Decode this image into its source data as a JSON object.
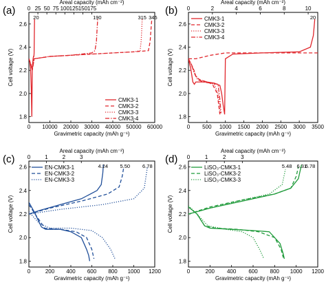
{
  "figure": {
    "panels": [
      {
        "label": "(a)",
        "xlabel": "Gravimetric capacity (mAh g⁻¹)",
        "x2label": "Areal capacity (mAh cm⁻²)",
        "ylabel": "Cell voltage (V)",
        "annotations": [
          "20",
          "190",
          "315",
          "345"
        ]
      },
      {
        "label": "(b)",
        "xlabel": "Gravimetric capacity (mAh g⁻¹)",
        "x2label": "Areal capacity (mAh cm⁻²)",
        "ylabel": "Cell voltage (V)",
        "annotations": [
          "20"
        ]
      },
      {
        "label": "(c)",
        "xlabel": "Gravimetric capacity (mAh g⁻¹)",
        "x2label": "Areal capacity (mAh cm⁻²)",
        "ylabel": "Cell voltage (V)",
        "annotations": [
          "4.24",
          "5.50",
          "6.78"
        ]
      },
      {
        "label": "(d)",
        "xlabel": "Gravimetric capacity (mAh g⁻¹)",
        "x2label": "Areal capacity (mAh cm⁻²)",
        "ylabel": "Cell voltage (V)",
        "annotations": [
          "5.48",
          "6.31",
          "6.78"
        ]
      }
    ]
  },
  "chart_data": [
    {
      "type": "line",
      "label": "(a)",
      "color": "#e0252b",
      "xlabel": "Gravimetric capacity (mAh g⁻¹)",
      "ylabel": "Cell voltage (V)",
      "x2label": "Areal capacity (mAh cm⁻²)",
      "xlim": [
        0,
        60000
      ],
      "ylim": [
        1.75,
        2.7
      ],
      "x2lim": [
        0,
        350
      ],
      "xticks": [
        0,
        10000,
        20000,
        30000,
        40000,
        50000,
        60000
      ],
      "yticks": [
        1.8,
        2.0,
        2.2,
        2.4,
        2.6
      ],
      "x2ticks": [
        0,
        25,
        50,
        75,
        100,
        125,
        150,
        175
      ],
      "legend_position": "bottom-right",
      "series": [
        {
          "name": "CMK3-1",
          "dash": "solid",
          "x": [
            0,
            400,
            800,
            1100,
            1400,
            1600,
            1800,
            2000,
            2200,
            2400,
            2500,
            2600,
            2700
          ],
          "y": [
            2.3,
            2.28,
            2.22,
            2.05,
            1.8,
            2.2,
            2.26,
            2.3,
            2.32,
            2.32,
            2.35,
            2.5,
            2.64
          ]
        },
        {
          "name": "CMK3-2",
          "dash": "dashed",
          "x": [
            0,
            1000,
            1600,
            2500,
            10000,
            20000,
            30000,
            40000,
            50000,
            57000,
            57800,
            58200,
            58600
          ],
          "y": [
            2.3,
            2.25,
            2.2,
            2.3,
            2.32,
            2.33,
            2.34,
            2.35,
            2.36,
            2.37,
            2.45,
            2.55,
            2.64
          ]
        },
        {
          "name": "CMK3-3",
          "dash": "dotted",
          "x": [
            0,
            1000,
            1600,
            2500,
            10000,
            20000,
            30000,
            40000,
            50000,
            53000,
            53500,
            53800,
            54000
          ],
          "y": [
            2.3,
            2.25,
            2.2,
            2.3,
            2.32,
            2.33,
            2.34,
            2.35,
            2.36,
            2.37,
            2.45,
            2.55,
            2.64
          ]
        },
        {
          "name": "CMK3-4",
          "dash": "dashdot",
          "x": [
            0,
            1000,
            1600,
            2500,
            10000,
            20000,
            30000,
            31500,
            32200,
            32500,
            32800
          ],
          "y": [
            2.3,
            2.25,
            2.2,
            2.3,
            2.32,
            2.33,
            2.35,
            2.37,
            2.45,
            2.55,
            2.64
          ]
        }
      ],
      "annotations": [
        {
          "text": "20",
          "x2": 20,
          "y": 2.66
        },
        {
          "text": "190",
          "x2": 190,
          "y": 2.66
        },
        {
          "text": "315",
          "x2": 315,
          "y": 2.66
        },
        {
          "text": "345",
          "x2": 345,
          "y": 2.66
        }
      ]
    },
    {
      "type": "line",
      "label": "(b)",
      "color": "#e0252b",
      "xlabel": "Gravimetric capacity (mAh g⁻¹)",
      "ylabel": "Cell voltage (V)",
      "x2label": "Areal capacity (mAh cm⁻²)",
      "xlim": [
        0,
        3500
      ],
      "ylim": [
        1.75,
        2.7
      ],
      "x2lim": [
        0,
        10.8
      ],
      "xticks": [
        0,
        500,
        1000,
        1500,
        2000,
        2500,
        3000,
        3500
      ],
      "yticks": [
        1.8,
        2.0,
        2.2,
        2.4,
        2.6
      ],
      "x2ticks": [
        0,
        2,
        4,
        6,
        8,
        10
      ],
      "legend_position": "top-left",
      "series": [
        {
          "name": "CMK3-1",
          "dash": "solid",
          "x": [
            0,
            60,
            120,
            160,
            200,
            300,
            500,
            700,
            850,
            900,
            940,
            980,
            1000,
            1200,
            2000,
            3000,
            3300,
            3380,
            3420
          ],
          "y": [
            2.3,
            2.22,
            2.1,
            2.08,
            2.1,
            2.1,
            2.1,
            2.09,
            2.07,
            2.0,
            1.9,
            1.82,
            2.3,
            2.34,
            2.35,
            2.36,
            2.4,
            2.5,
            2.64
          ]
        },
        {
          "name": "CMK3-2",
          "dash": "dashed",
          "x": [
            0,
            80,
            150,
            200,
            300,
            500,
            650,
            780,
            820,
            850,
            0,
            200,
            600,
            1000,
            3500
          ],
          "y": [
            2.3,
            2.25,
            2.2,
            2.15,
            2.12,
            2.1,
            2.08,
            2.0,
            1.9,
            1.82,
            2.3,
            2.3,
            2.33,
            2.35,
            2.35
          ]
        },
        {
          "name": "CMK3-3",
          "dash": "dotted",
          "x": [
            0,
            80,
            150,
            200,
            300,
            500,
            700,
            800,
            840,
            870
          ],
          "y": [
            2.3,
            2.25,
            2.2,
            2.15,
            2.12,
            2.1,
            2.08,
            2.0,
            1.9,
            1.82
          ]
        },
        {
          "name": "CMK3-4",
          "dash": "dashdot",
          "x": [
            0,
            80,
            150,
            250,
            400,
            600,
            800,
            850,
            880
          ],
          "y": [
            2.3,
            2.25,
            2.18,
            2.12,
            2.1,
            2.09,
            2.08,
            1.95,
            1.83
          ]
        }
      ],
      "annotations": [
        {
          "text": "20",
          "x2": 10.4,
          "y": 2.66
        }
      ]
    },
    {
      "type": "line",
      "label": "(c)",
      "color": "#1f4e99",
      "xlabel": "Gravimetric capacity (mAh g⁻¹)",
      "ylabel": "Cell voltage (V)",
      "x2label": "Areal capacity (mAh cm⁻²)",
      "xlim": [
        0,
        1200
      ],
      "ylim": [
        1.75,
        2.65
      ],
      "x2lim": [
        0,
        7.2
      ],
      "xticks": [
        0,
        200,
        400,
        600,
        800,
        1000,
        1200
      ],
      "yticks": [
        1.8,
        2.0,
        2.2,
        2.4,
        2.6
      ],
      "x2ticks": [
        0,
        1,
        2,
        3
      ],
      "legend_position": "top-left",
      "series": [
        {
          "name": "EN-CMK3-1",
          "dash": "solid",
          "x": [
            0,
            50,
            120,
            160,
            200,
            300,
            400,
            500,
            550,
            570,
            580,
            0,
            100,
            300,
            500,
            650,
            690,
            705,
            710
          ],
          "y": [
            2.3,
            2.22,
            2.09,
            2.07,
            2.07,
            2.07,
            2.05,
            2.0,
            1.9,
            1.85,
            1.8,
            2.2,
            2.23,
            2.28,
            2.33,
            2.4,
            2.45,
            2.55,
            2.62
          ]
        },
        {
          "name": "EN-CMK3-2",
          "dash": "dashed",
          "x": [
            0,
            60,
            150,
            300,
            450,
            550,
            600,
            620,
            0,
            200,
            500,
            750,
            860,
            890,
            905
          ],
          "y": [
            2.28,
            2.2,
            2.08,
            2.07,
            2.05,
            2.0,
            1.9,
            1.82,
            2.2,
            2.25,
            2.31,
            2.37,
            2.43,
            2.52,
            2.6
          ]
        },
        {
          "name": "EN-CMK3-3",
          "dash": "dotted",
          "x": [
            0,
            100,
            200,
            400,
            600,
            700,
            780,
            820,
            0,
            300,
            700,
            1000,
            1100,
            1130
          ],
          "y": [
            2.22,
            2.12,
            2.08,
            2.08,
            2.06,
            2.0,
            1.9,
            1.82,
            2.2,
            2.24,
            2.28,
            2.33,
            2.42,
            2.6
          ]
        }
      ],
      "annotations": [
        {
          "text": "4.24",
          "x2": 4.24,
          "y": 2.62
        },
        {
          "text": "5.50",
          "x2": 5.5,
          "y": 2.62
        },
        {
          "text": "6.78",
          "x2": 6.78,
          "y": 2.62
        }
      ]
    },
    {
      "type": "line",
      "label": "(d)",
      "color": "#1f9a3a",
      "xlabel": "Gravimetric capacity (mAh g⁻¹)",
      "ylabel": "Cell voltage (V)",
      "x2label": "Areal capacity (mAh cm⁻²)",
      "xlim": [
        0,
        1200
      ],
      "ylim": [
        1.75,
        2.65
      ],
      "x2lim": [
        0,
        7.2
      ],
      "xticks": [
        0,
        200,
        400,
        600,
        800,
        1000,
        1200
      ],
      "yticks": [
        1.8,
        2.0,
        2.2,
        2.4,
        2.6
      ],
      "x2ticks": [
        0,
        1,
        2,
        3
      ],
      "legend_position": "top-left",
      "series": [
        {
          "name": "LiSO₃-CMK3-1",
          "dash": "solid",
          "x": [
            0,
            80,
            150,
            200,
            400,
            600,
            750,
            850,
            880,
            890,
            0,
            200,
            500,
            800,
            950,
            1020,
            1040,
            1050
          ],
          "y": [
            2.26,
            2.2,
            2.1,
            2.08,
            2.07,
            2.06,
            2.05,
            1.95,
            1.86,
            1.82,
            2.2,
            2.25,
            2.31,
            2.37,
            2.42,
            2.5,
            2.58,
            2.62
          ]
        },
        {
          "name": "LiSO₃-CMK3-2",
          "dash": "dashed",
          "x": [
            0,
            80,
            150,
            250,
            450,
            650,
            800,
            860,
            880,
            0,
            200,
            500,
            800,
            950,
            1000,
            1020
          ],
          "y": [
            2.26,
            2.2,
            2.1,
            2.08,
            2.07,
            2.05,
            2.0,
            1.9,
            1.83,
            2.2,
            2.26,
            2.32,
            2.37,
            2.42,
            2.52,
            2.6
          ]
        },
        {
          "name": "LiSO₃-CMK3-3",
          "dash": "dotted",
          "x": [
            0,
            80,
            180,
            350,
            500,
            600,
            660,
            700,
            0,
            200,
            500,
            750,
            870,
            900
          ],
          "y": [
            2.27,
            2.2,
            2.1,
            2.07,
            2.05,
            2.0,
            1.9,
            1.82,
            2.2,
            2.25,
            2.32,
            2.37,
            2.45,
            2.58
          ]
        }
      ],
      "annotations": [
        {
          "text": "5.48",
          "x2": 5.48,
          "y": 2.62
        },
        {
          "text": "6.31",
          "x2": 6.31,
          "y": 2.62
        },
        {
          "text": "6.78",
          "x2": 6.78,
          "y": 2.62
        }
      ]
    }
  ]
}
